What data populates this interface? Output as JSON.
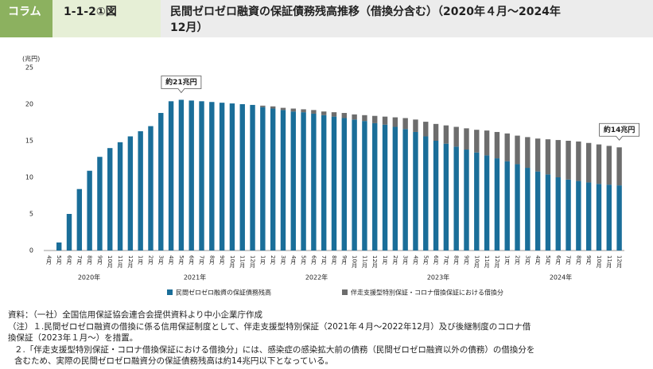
{
  "header": {
    "tag": "コラム",
    "figure": "1-1-2①図",
    "title_lines": [
      "民間ゼロゼロ融資の保証債務残高推移（借換分含む）（2020年４月〜2024年",
      "12月）"
    ]
  },
  "chart_data": {
    "type": "stacked_bar",
    "y_label": "(兆円)",
    "categories": [
      "4月",
      "5月",
      "6月",
      "7月",
      "8月",
      "9月",
      "10月",
      "11月",
      "12月",
      "1月",
      "2月",
      "3月",
      "4月",
      "5月",
      "6月",
      "7月",
      "8月",
      "9月",
      "10月",
      "11月",
      "12月",
      "1月",
      "2月",
      "3月",
      "4月",
      "5月",
      "6月",
      "7月",
      "8月",
      "9月",
      "10月",
      "11月",
      "12月",
      "1月",
      "2月",
      "3月",
      "4月",
      "5月",
      "6月",
      "7月",
      "8月",
      "9月",
      "10月",
      "11月",
      "12月",
      "1月",
      "2月",
      "3月",
      "4月",
      "5月",
      "6月",
      "7月",
      "8月",
      "9月",
      "10月",
      "11月",
      "12月"
    ],
    "year_labels": [
      "2020年",
      "2021年",
      "2022年",
      "2023年",
      "2024年"
    ],
    "series": [
      {
        "name": "民間ゼロゼロ融資の保証債務残高",
        "color": "#1a6e99",
        "values": [
          0,
          1.1,
          5.0,
          8.4,
          10.9,
          12.8,
          14.0,
          14.8,
          15.6,
          16.3,
          17.0,
          18.8,
          20.4,
          20.6,
          20.5,
          20.4,
          20.3,
          20.2,
          20.1,
          20.0,
          19.9,
          19.6,
          19.4,
          19.2,
          19.0,
          18.9,
          18.7,
          18.5,
          18.3,
          18.1,
          17.9,
          17.7,
          17.4,
          17.2,
          16.9,
          16.6,
          16.2,
          15.6,
          15.0,
          14.6,
          14.2,
          13.8,
          13.4,
          13.0,
          12.6,
          12.2,
          11.8,
          11.3,
          10.8,
          10.4,
          10.0,
          9.7,
          9.5,
          9.3,
          9.1,
          9.0,
          8.9
        ]
      },
      {
        "name": "伴走支援型特別保証・コロナ借換保証における借換分",
        "color": "#6d6d6d",
        "values": [
          0,
          0,
          0,
          0,
          0,
          0,
          0,
          0,
          0,
          0,
          0,
          0,
          0,
          0,
          0,
          0,
          0,
          0,
          0,
          0,
          0,
          0.2,
          0.3,
          0.3,
          0.4,
          0.4,
          0.5,
          0.5,
          0.6,
          0.7,
          0.7,
          0.8,
          1.0,
          1.1,
          1.3,
          1.5,
          1.7,
          2.0,
          2.3,
          2.5,
          2.7,
          2.9,
          3.1,
          3.4,
          3.6,
          3.8,
          3.9,
          4.2,
          4.5,
          4.8,
          5.1,
          5.3,
          5.4,
          5.4,
          5.4,
          5.3,
          5.2
        ]
      }
    ],
    "ylim": [
      0,
      25
    ],
    "yticks": [
      0,
      5,
      10,
      15,
      20,
      25
    ],
    "annotations": [
      "約21兆円",
      "約14兆円"
    ]
  },
  "notes": [
    "資料：（一社）全国信用保証協会連合会提供資料より中小企業庁作成",
    "（注）１.民間ゼロゼロ融資の借換に係る信用保証制度として、伴走支援型特別保証（2021年４月〜2022年12月）及び後継制度のコロナ借",
    "換保証（2023年１月〜）を措置。",
    "２.「伴走支援型特別保証・コロナ借換保証における借換分」には、感染症の感染拡大前の債務（民間ゼロゼロ融資以外の債務）の借換分を",
    "含むため、実際の民間ゼロゼロ融資分の保証債務残高は約14兆円以下となっている。"
  ]
}
